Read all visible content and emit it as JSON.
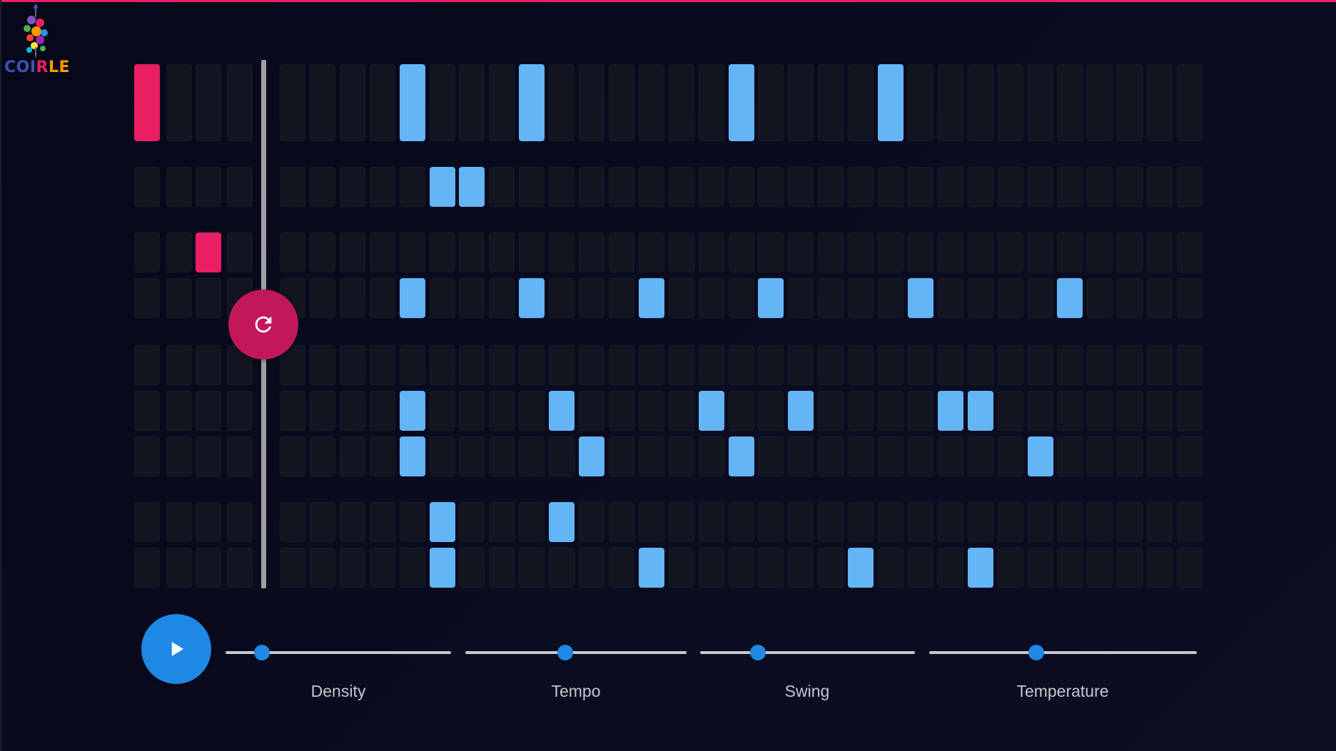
{
  "app": {
    "logo_text": "COIRLE",
    "logo_colors": [
      "#3f51b5",
      "#3f51b5",
      "#3f51b5",
      "#e91e63",
      "#ff9800",
      "#ff9800"
    ]
  },
  "colors": {
    "accent_pink": "#e91e63",
    "refresh_pink": "#c2185b",
    "active_blue": "#64b5f6",
    "play_blue": "#1e88e5"
  },
  "sequencer": {
    "rows": 9,
    "seed_steps": 4,
    "pattern_steps": 31,
    "seed_active": [
      [
        0
      ],
      [],
      [
        2
      ],
      [],
      [],
      [],
      [],
      [],
      []
    ],
    "pattern_active": [
      [
        4,
        8,
        15,
        20
      ],
      [
        5,
        6
      ],
      [],
      [
        4,
        8,
        12,
        16,
        21,
        26
      ],
      [],
      [
        4,
        9,
        14,
        17,
        22,
        23
      ],
      [
        4,
        10,
        15,
        25
      ],
      [
        5,
        9
      ],
      [
        5,
        12,
        19,
        23
      ]
    ]
  },
  "controls": {
    "refresh_icon": "refresh-icon",
    "play_icon": "play-icon",
    "sliders": [
      {
        "label": "Density",
        "value": 0.16
      },
      {
        "label": "Tempo",
        "value": 0.45
      },
      {
        "label": "Swing",
        "value": 0.27
      },
      {
        "label": "Temperature",
        "value": 0.4
      }
    ]
  }
}
